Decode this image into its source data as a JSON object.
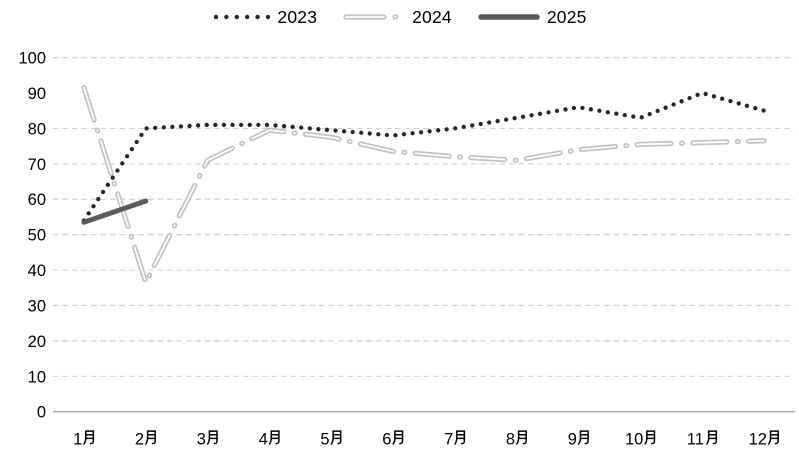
{
  "page": {
    "background": "#ffffff"
  },
  "legend": {
    "position": "top-center",
    "items": [
      {
        "label": "2023",
        "style": "dotted",
        "color": "#262626"
      },
      {
        "label": "2024",
        "style": "dash-dot-outlined",
        "color": "#c3c3c3",
        "core_color": "#ffffff"
      },
      {
        "label": "2025",
        "style": "solid",
        "color": "#5b5b5b"
      }
    ]
  },
  "chart_data": {
    "type": "line",
    "title": "",
    "xlabel": "",
    "ylabel": "",
    "categories": [
      "1月",
      "2月",
      "3月",
      "4月",
      "5月",
      "6月",
      "7月",
      "8月",
      "9月",
      "10月",
      "11月",
      "12月"
    ],
    "series": [
      {
        "name": "2023",
        "style": "dotted",
        "color": "#262626",
        "values": [
          54,
          80,
          81,
          81,
          79.5,
          78,
          80,
          83,
          86,
          83,
          90,
          85
        ]
      },
      {
        "name": "2024",
        "style": "dash-dot",
        "color": "#c3c3c3",
        "core_color": "#ffffff",
        "values": [
          91.5,
          36.5,
          71,
          79.5,
          77.5,
          73.5,
          72,
          71,
          74,
          75.5,
          76,
          76.5
        ]
      },
      {
        "name": "2025",
        "style": "solid",
        "color": "#5b5b5b",
        "values": [
          53.5,
          59.5,
          null,
          null,
          null,
          null,
          null,
          null,
          null,
          null,
          null,
          null
        ]
      }
    ],
    "ylim": [
      0,
      100
    ],
    "yticks": [
      0,
      10,
      20,
      30,
      40,
      50,
      60,
      70,
      80,
      90,
      100
    ],
    "missing_gridlines": [
      90
    ],
    "grid": true,
    "gridline_style": "dashed",
    "legend_position": "top",
    "colors": {
      "grid": "#d3d3d3",
      "axis": "#a8a8a8",
      "text": "#000000"
    }
  }
}
